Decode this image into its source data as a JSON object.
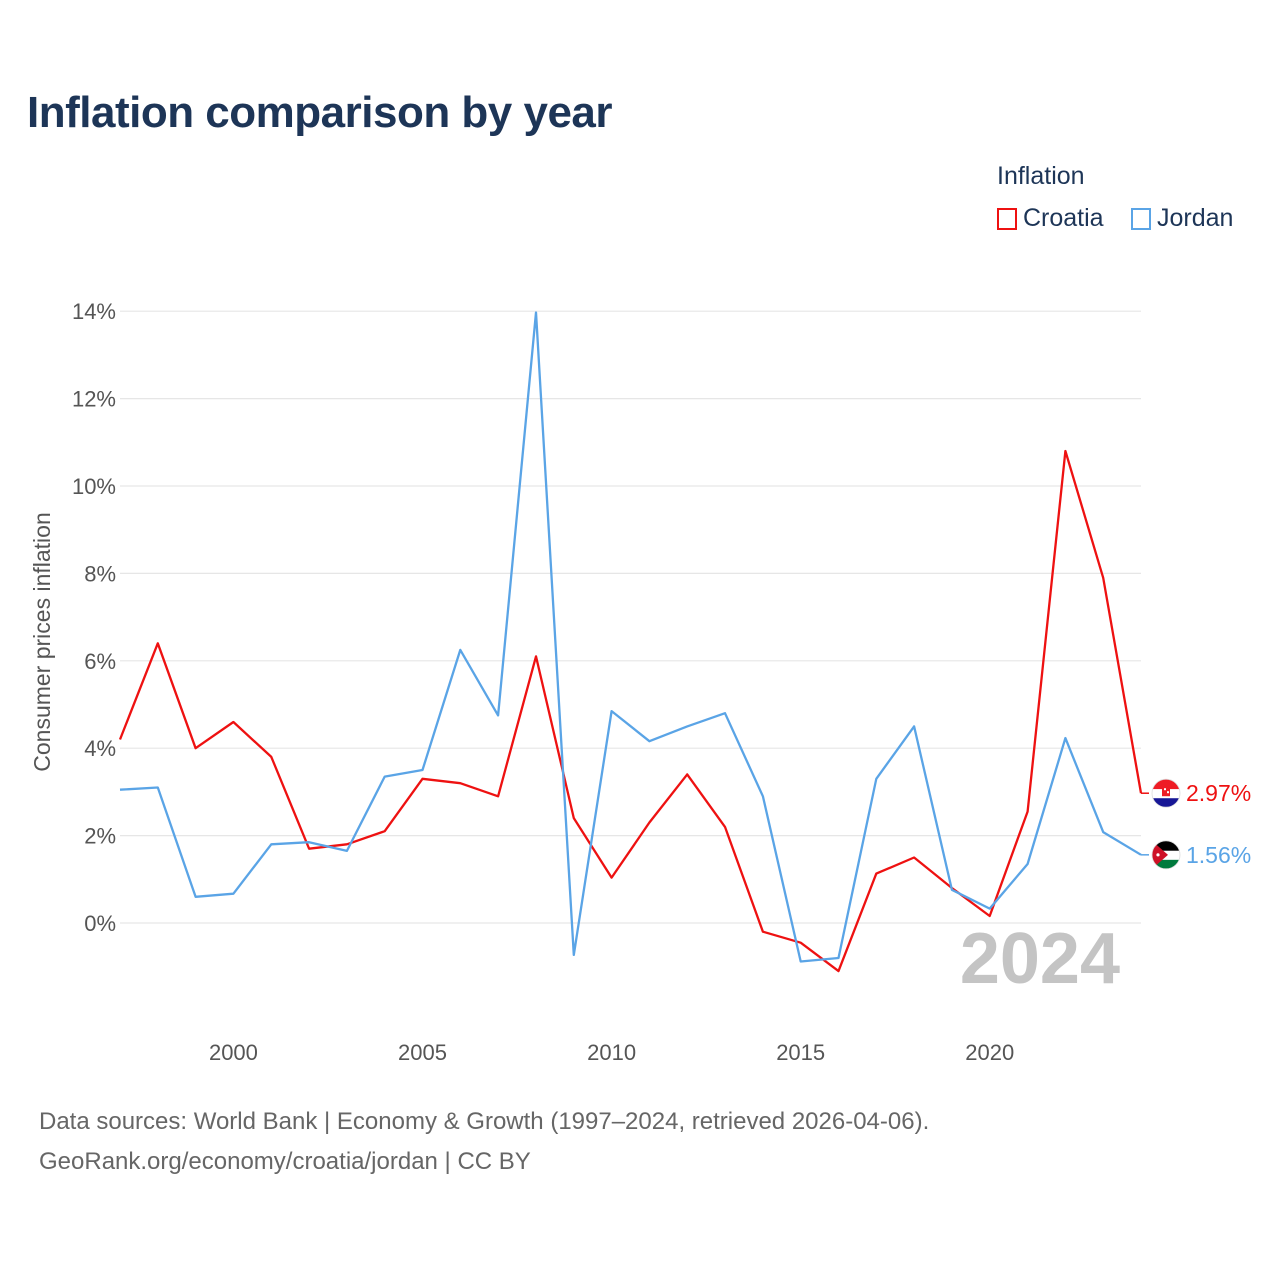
{
  "header": {
    "title": "Inflation comparison by year"
  },
  "legend": {
    "title": "Inflation",
    "items": [
      {
        "label": "Croatia",
        "color": "#ee1111"
      },
      {
        "label": "Jordan",
        "color": "#5aa4e6"
      }
    ]
  },
  "footer": {
    "line1": "Data sources: World Bank | Economy & Growth (1997–2024, retrieved 2026-04-06).",
    "line2": "GeoRank.org/economy/croatia/jordan | CC BY"
  },
  "chart_data": {
    "type": "line",
    "title": "Inflation comparison by year",
    "ylabel": "Consumer prices inflation",
    "xlabel": "",
    "year_label": "2024",
    "xlim": [
      1997,
      2024
    ],
    "ylim": [
      -2,
      14
    ],
    "y_ticks": [
      0,
      2,
      4,
      6,
      8,
      10,
      12,
      14
    ],
    "y_tick_labels": [
      "0%",
      "2%",
      "4%",
      "6%",
      "8%",
      "10%",
      "12%",
      "14%"
    ],
    "x_ticks": [
      2000,
      2005,
      2010,
      2015,
      2020
    ],
    "x_tick_labels": [
      "2000",
      "2005",
      "2010",
      "2015",
      "2020"
    ],
    "x": [
      1997,
      1998,
      1999,
      2000,
      2001,
      2002,
      2003,
      2004,
      2005,
      2006,
      2007,
      2008,
      2009,
      2010,
      2011,
      2012,
      2013,
      2014,
      2015,
      2016,
      2017,
      2018,
      2019,
      2020,
      2021,
      2022,
      2023,
      2024
    ],
    "series": [
      {
        "name": "Croatia",
        "color": "#ee1111",
        "end_label": "2.97%",
        "values": [
          4.2,
          6.4,
          4.0,
          4.6,
          3.8,
          1.7,
          1.8,
          2.1,
          3.3,
          3.2,
          2.9,
          6.1,
          2.4,
          1.04,
          2.3,
          3.4,
          2.2,
          -0.2,
          -0.45,
          -1.1,
          1.13,
          1.5,
          0.8,
          0.16,
          2.55,
          10.8,
          7.9,
          2.97
        ]
      },
      {
        "name": "Jordan",
        "color": "#5aa4e6",
        "end_label": "1.56%",
        "values": [
          3.05,
          3.1,
          0.6,
          0.67,
          1.8,
          1.85,
          1.65,
          3.35,
          3.5,
          6.25,
          4.75,
          13.97,
          -0.73,
          4.85,
          4.16,
          4.5,
          4.8,
          2.9,
          -0.88,
          -0.8,
          3.3,
          4.5,
          0.76,
          0.33,
          1.35,
          4.23,
          2.08,
          1.56
        ]
      }
    ]
  }
}
